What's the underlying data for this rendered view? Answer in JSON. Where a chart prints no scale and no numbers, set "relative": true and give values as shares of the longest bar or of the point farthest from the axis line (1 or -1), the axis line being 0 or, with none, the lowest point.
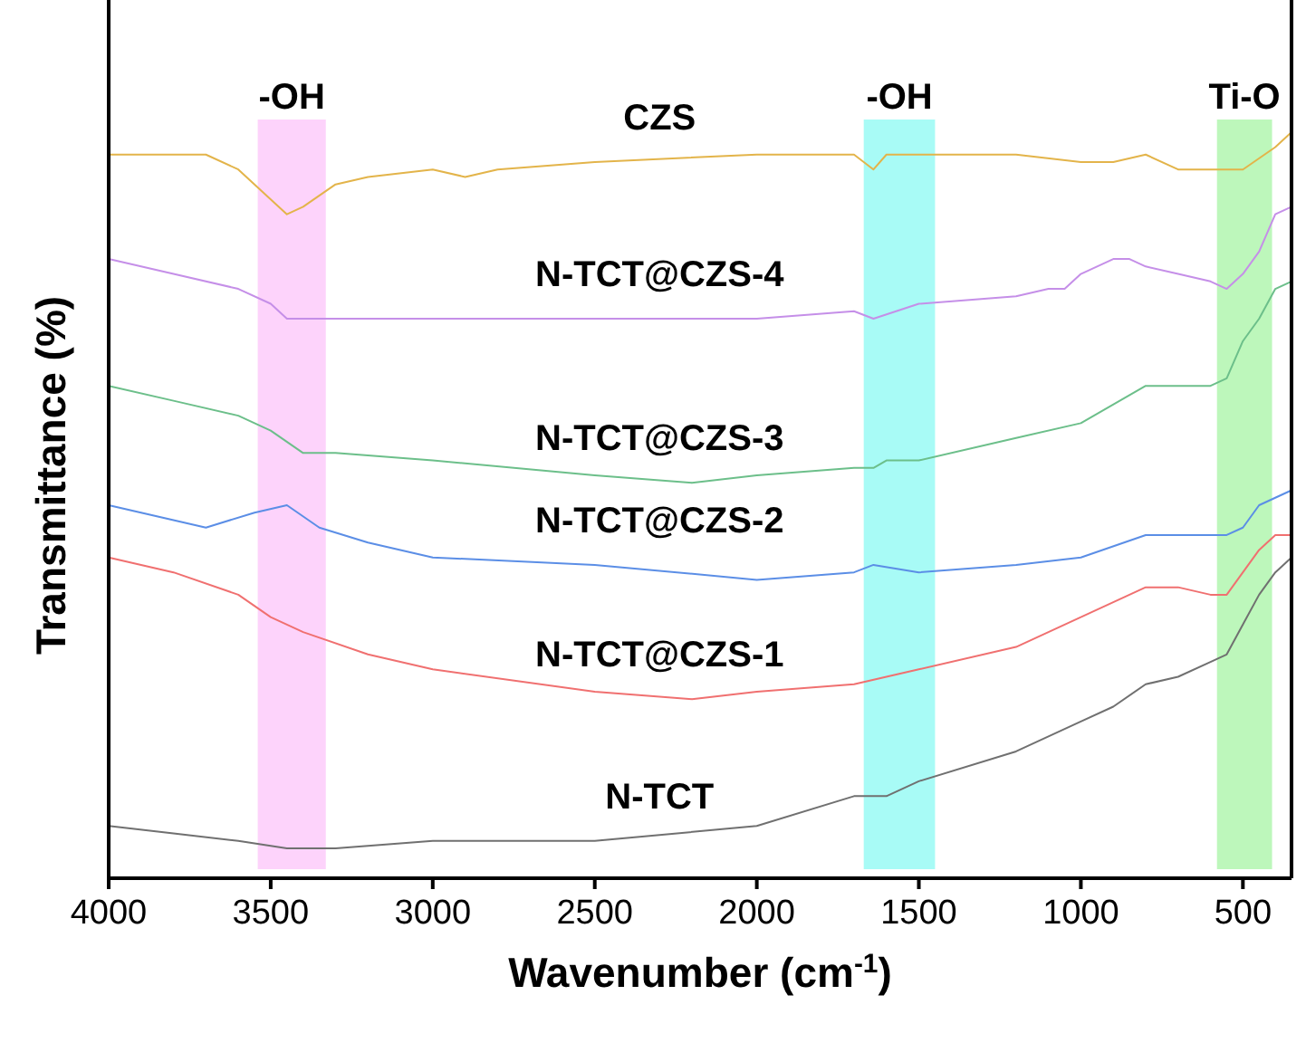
{
  "chart_data": {
    "type": "line",
    "relative": true,
    "xlabel": "Wavenumber (cm$^{-1}$)",
    "ylabel": "Transmittance (%)",
    "xlim": [
      4000,
      350
    ],
    "xticks": [
      4000,
      3500,
      3000,
      2500,
      2000,
      1500,
      1000,
      500
    ],
    "grid": false,
    "marker": "none",
    "line_style": "solid",
    "bands": [
      {
        "axis": "x",
        "from": 3540,
        "to": 3330,
        "label": "-OH",
        "color": "#fdd3fb"
      },
      {
        "axis": "x",
        "from": 1670,
        "to": 1450,
        "label": "-OH",
        "color": "#a8fbf6"
      },
      {
        "axis": "x",
        "from": 580,
        "to": 410,
        "label": "Ti-O",
        "color": "#bdf7bb"
      }
    ],
    "series": [
      {
        "name": "CZS",
        "color": "#e3b44a",
        "x": [
          4000,
          3800,
          3700,
          3600,
          3500,
          3450,
          3400,
          3300,
          3200,
          3000,
          2900,
          2800,
          2500,
          2000,
          1700,
          1640,
          1600,
          1500,
          1200,
          1000,
          900,
          800,
          700,
          600,
          500,
          400,
          350
        ],
        "values": [
          0.97,
          0.97,
          0.97,
          0.95,
          0.91,
          0.89,
          0.9,
          0.93,
          0.94,
          0.95,
          0.94,
          0.95,
          0.96,
          0.97,
          0.97,
          0.95,
          0.97,
          0.97,
          0.97,
          0.96,
          0.96,
          0.97,
          0.95,
          0.95,
          0.95,
          0.98,
          1.0
        ]
      },
      {
        "name": "N-TCT@CZS-4",
        "color": "#c58fe8",
        "x": [
          4000,
          3800,
          3600,
          3500,
          3450,
          3400,
          3000,
          2900,
          2500,
          2000,
          1700,
          1640,
          1500,
          1200,
          1100,
          1050,
          1000,
          900,
          850,
          800,
          700,
          600,
          550,
          500,
          450,
          400,
          350
        ],
        "values": [
          0.83,
          0.81,
          0.79,
          0.77,
          0.75,
          0.75,
          0.75,
          0.75,
          0.75,
          0.75,
          0.76,
          0.75,
          0.77,
          0.78,
          0.79,
          0.79,
          0.81,
          0.83,
          0.83,
          0.82,
          0.81,
          0.8,
          0.79,
          0.81,
          0.84,
          0.89,
          0.9
        ]
      },
      {
        "name": "N-TCT@CZS-3",
        "color": "#6cbf8a",
        "x": [
          4000,
          3800,
          3600,
          3500,
          3400,
          3300,
          3000,
          2500,
          2200,
          2000,
          1700,
          1640,
          1600,
          1500,
          1200,
          1000,
          800,
          600,
          550,
          500,
          450,
          400,
          350
        ],
        "values": [
          0.66,
          0.64,
          0.62,
          0.6,
          0.57,
          0.57,
          0.56,
          0.54,
          0.53,
          0.54,
          0.55,
          0.55,
          0.56,
          0.56,
          0.59,
          0.61,
          0.66,
          0.66,
          0.67,
          0.72,
          0.75,
          0.79,
          0.8
        ]
      },
      {
        "name": "N-TCT@CZS-2",
        "color": "#5b8ee6",
        "x": [
          4000,
          3700,
          3550,
          3450,
          3350,
          3200,
          3000,
          2500,
          2000,
          1700,
          1640,
          1500,
          1200,
          1000,
          800,
          600,
          550,
          500,
          450,
          400,
          350
        ],
        "values": [
          0.5,
          0.47,
          0.49,
          0.5,
          0.47,
          0.45,
          0.43,
          0.42,
          0.4,
          0.41,
          0.42,
          0.41,
          0.42,
          0.43,
          0.46,
          0.46,
          0.46,
          0.47,
          0.5,
          0.51,
          0.52
        ]
      },
      {
        "name": "N-TCT@CZS-1",
        "color": "#f07070",
        "x": [
          4000,
          3800,
          3600,
          3500,
          3400,
          3200,
          3000,
          2500,
          2200,
          2000,
          1700,
          1600,
          1500,
          1200,
          1000,
          800,
          700,
          600,
          550,
          500,
          450,
          400,
          350
        ],
        "values": [
          0.43,
          0.41,
          0.38,
          0.35,
          0.33,
          0.3,
          0.28,
          0.25,
          0.24,
          0.25,
          0.26,
          0.27,
          0.28,
          0.31,
          0.35,
          0.39,
          0.39,
          0.38,
          0.38,
          0.41,
          0.44,
          0.46,
          0.46
        ]
      },
      {
        "name": "N-TCT",
        "color": "#707070",
        "x": [
          4000,
          3800,
          3600,
          3450,
          3300,
          3000,
          2500,
          2000,
          1700,
          1600,
          1500,
          1200,
          1000,
          900,
          800,
          700,
          600,
          550,
          500,
          450,
          400,
          350
        ],
        "values": [
          0.07,
          0.06,
          0.05,
          0.04,
          0.04,
          0.05,
          0.05,
          0.07,
          0.11,
          0.11,
          0.13,
          0.17,
          0.21,
          0.23,
          0.26,
          0.27,
          0.29,
          0.3,
          0.34,
          0.38,
          0.41,
          0.43
        ]
      }
    ]
  }
}
